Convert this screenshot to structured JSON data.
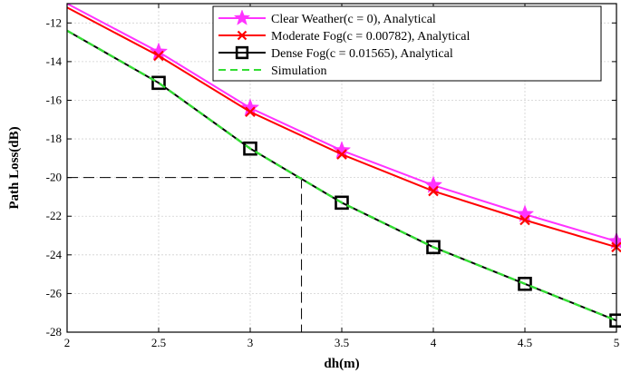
{
  "chart_data": {
    "type": "line",
    "title": "",
    "xlabel": "dh(m)",
    "ylabel": "Path Loss(dB)",
    "xlim": [
      2,
      5
    ],
    "ylim": [
      -28,
      -11
    ],
    "x_ticks": [
      "2",
      "2.5",
      "3",
      "3.5",
      "4",
      "4.5",
      "5"
    ],
    "y_ticks": [
      "-12",
      "-14",
      "-16",
      "-18",
      "-20",
      "-22",
      "-24",
      "-26",
      "-28"
    ],
    "grid": true,
    "legend_position": "top-right",
    "x": [
      2,
      2.5,
      3,
      3.5,
      4,
      4.5,
      5
    ],
    "series": [
      {
        "name": "Clear Weather(c = 0), Analytical",
        "color": "#ff33ff",
        "marker": "star",
        "values": [
          -11.0,
          -13.5,
          -16.4,
          -18.6,
          -20.4,
          -21.9,
          -23.3
        ]
      },
      {
        "name": "Moderate Fog(c = 0.00782), Analytical",
        "color": "#ff0000",
        "marker": "x",
        "values": [
          -11.2,
          -13.7,
          -16.6,
          -18.8,
          -20.7,
          -22.2,
          -23.6
        ]
      },
      {
        "name": "Dense Fog(c = 0.01565), Analytical",
        "color": "#000000",
        "marker": "square",
        "values": [
          -12.4,
          -15.1,
          -18.5,
          -21.3,
          -23.6,
          -25.5,
          -27.4
        ]
      },
      {
        "name": "Simulation",
        "color": "#33dd33",
        "marker": "none",
        "dashed": true,
        "values": [
          -12.4,
          -15.1,
          -18.5,
          -21.3,
          -23.6,
          -25.5,
          -27.4
        ]
      }
    ],
    "annotation": {
      "type": "dashed-reference-lines",
      "y_value": -20,
      "x_value": 3.28
    }
  }
}
